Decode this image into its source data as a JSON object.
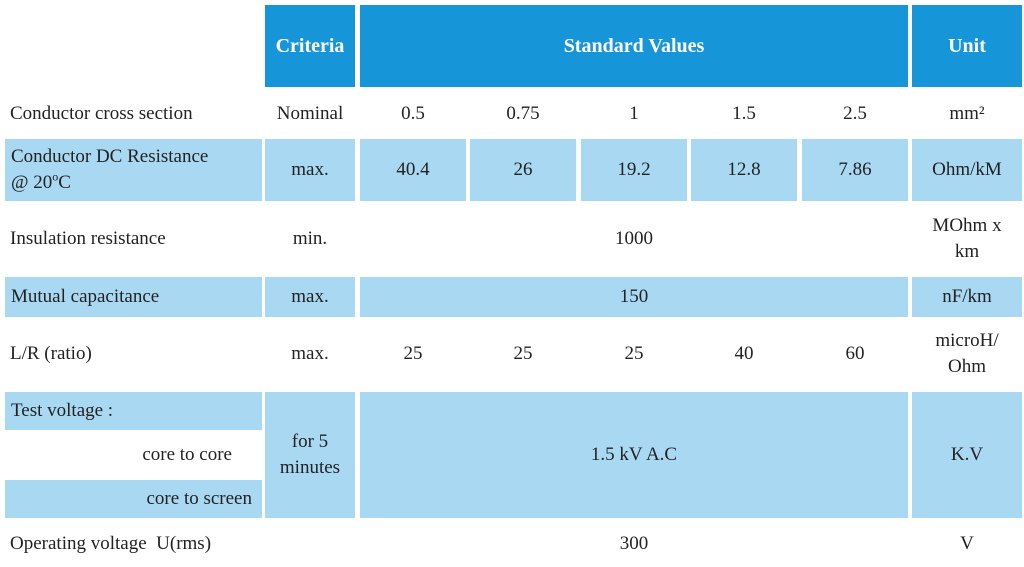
{
  "header": {
    "criteria": "Criteria",
    "standard_values": "Standard Values",
    "unit": "Unit"
  },
  "rows": {
    "cross_section": {
      "label": "Conductor cross section",
      "criteria": "Nominal",
      "values": [
        "0.5",
        "0.75",
        "1",
        "1.5",
        "2.5"
      ],
      "unit": "mm²"
    },
    "dc_resistance": {
      "label_line1": "Conductor DC Resistance",
      "label_line2_prefix": "@ 20",
      "label_line2_sup": "o",
      "label_line2_suffix": "C",
      "criteria": "max.",
      "values": [
        "40.4",
        "26",
        "19.2",
        "12.8",
        "7.86"
      ],
      "unit": "Ohm/kM"
    },
    "insulation": {
      "label": "Insulation resistance",
      "criteria": "min.",
      "value": "1000",
      "unit_line1": "MOhm x",
      "unit_line2": "km"
    },
    "capacitance": {
      "label": "Mutual capacitance",
      "criteria": "max.",
      "value": "150",
      "unit": "nF/km"
    },
    "lr_ratio": {
      "label": "L/R (ratio)",
      "criteria": "max.",
      "values": [
        "25",
        "25",
        "25",
        "40",
        "60"
      ],
      "unit_line1": "microH/",
      "unit_line2": "Ohm"
    },
    "test_voltage": {
      "label": "Test voltage :",
      "sub1": "core to core",
      "sub2": "core to screen",
      "criteria_line1": "for 5",
      "criteria_line2": "minutes",
      "value": "1.5 kV A.C",
      "unit": "K.V"
    },
    "operating": {
      "label": "Operating voltage  U(rms)",
      "value": "300",
      "unit": "V"
    }
  },
  "colors": {
    "header_blue": "#1695d9",
    "light_blue": "#a9d8f3",
    "text": "#222222"
  }
}
